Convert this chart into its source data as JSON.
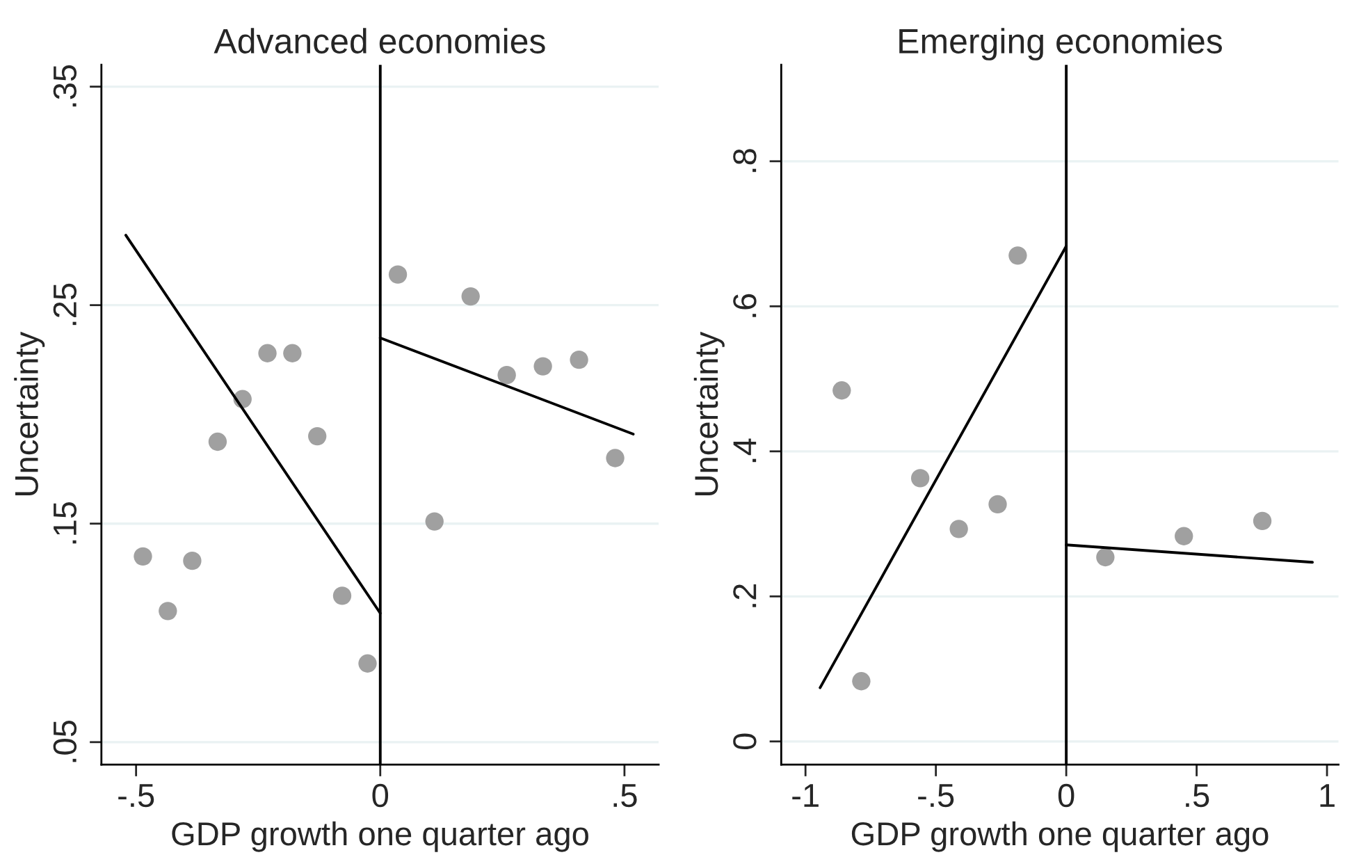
{
  "chart_data": [
    {
      "type": "scatter",
      "title": "Advanced economies",
      "xlabel": "GDP growth one quarter ago",
      "ylabel": "Uncertainty",
      "xlim": [
        -0.571,
        0.57
      ],
      "ylim": [
        0.0397,
        0.36
      ],
      "xticks": [
        {
          "value": -0.5,
          "label": "-.5"
        },
        0,
        {
          "value": 0.5,
          "label": ".5"
        }
      ],
      "yticks": [
        {
          "value": 0.05,
          "label": ".05"
        },
        {
          "value": 0.15,
          "label": ".15"
        },
        {
          "value": 0.25,
          "label": ".25"
        },
        {
          "value": 0.35,
          "label": ".35"
        }
      ],
      "grid": "y",
      "ref_lines": [
        {
          "axis": "x",
          "value": 0,
          "color": "#000000"
        }
      ],
      "series": [
        {
          "marker": "circle",
          "color": "#a0a0a0",
          "x": [
            -0.486,
            -0.435,
            -0.385,
            -0.333,
            -0.282,
            -0.231,
            -0.18,
            -0.129,
            -0.078,
            -0.026,
            0.036,
            0.111,
            0.185,
            0.259,
            0.333,
            0.407,
            0.481
          ],
          "values": [
            0.135,
            0.11,
            0.133,
            0.1875,
            0.207,
            0.228,
            0.228,
            0.19,
            0.117,
            0.086,
            0.264,
            0.151,
            0.254,
            0.218,
            0.222,
            0.225,
            0.18
          ]
        },
        {
          "type": "line",
          "color": "#000000",
          "x": [
            -0.521,
            0
          ],
          "values": [
            0.282,
            0.109
          ]
        },
        {
          "type": "line",
          "color": "#000000",
          "x": [
            0,
            0.518
          ],
          "values": [
            0.235,
            0.191
          ]
        }
      ]
    },
    {
      "type": "scatter",
      "title": "Emerging economies",
      "xlabel": "GDP growth one quarter ago",
      "ylabel": "Uncertainty",
      "xlim": [
        -1.093,
        1.044
      ],
      "ylim": [
        -0.032,
        0.933
      ],
      "xticks": [
        {
          "value": -1,
          "label": "-1"
        },
        {
          "value": -0.5,
          "label": "-.5"
        },
        0,
        {
          "value": 0.5,
          "label": ".5"
        },
        1
      ],
      "yticks": [
        0,
        {
          "value": 0.2,
          "label": ".2"
        },
        {
          "value": 0.4,
          "label": ".4"
        },
        {
          "value": 0.6,
          "label": ".6"
        },
        {
          "value": 0.8,
          "label": ".8"
        }
      ],
      "grid": "y",
      "ref_lines": [
        {
          "axis": "x",
          "value": 0,
          "color": "#000000"
        }
      ],
      "series": [
        {
          "marker": "circle",
          "color": "#a0a0a0",
          "x": [
            -0.861,
            -0.786,
            -0.56,
            -0.412,
            -0.263,
            -0.186,
            0.15,
            0.451,
            0.752
          ],
          "values": [
            0.484,
            0.083,
            0.363,
            0.293,
            0.327,
            0.67,
            0.254,
            0.283,
            0.304
          ]
        },
        {
          "type": "line",
          "color": "#000000",
          "x": [
            -0.944,
            0
          ],
          "values": [
            0.074,
            0.683
          ]
        },
        {
          "type": "line",
          "color": "#000000",
          "x": [
            0,
            0.944
          ],
          "values": [
            0.271,
            0.247
          ]
        }
      ]
    }
  ]
}
